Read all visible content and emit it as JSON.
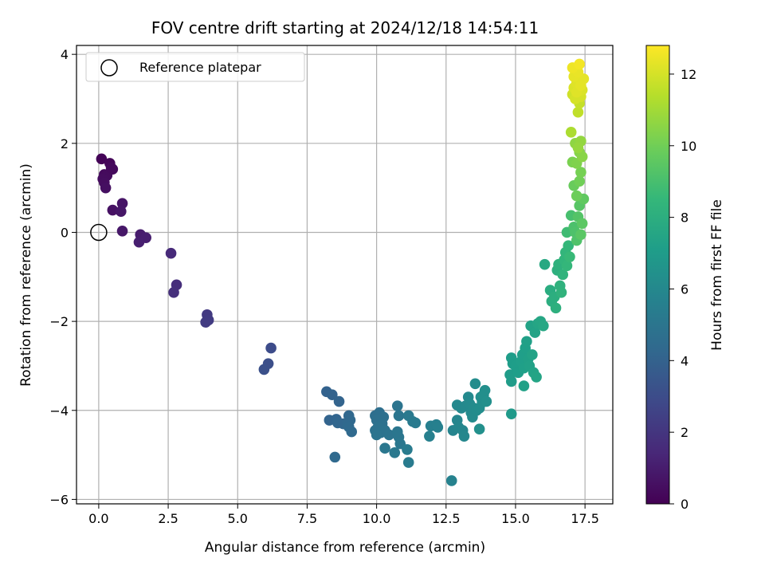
{
  "chart_data": {
    "type": "scatter",
    "title": "FOV centre drift starting at 2024/12/18 14:54:11",
    "xlabel": "Angular distance from reference (arcmin)",
    "ylabel": "Rotation from reference (arcmin)",
    "xlim": [
      -0.8,
      18.5
    ],
    "ylim": [
      -6.1,
      4.2
    ],
    "xticks": [
      0,
      2.5,
      5,
      7.5,
      10,
      12.5,
      15,
      17.5
    ],
    "xtick_labels": [
      "0.0",
      "2.5",
      "5.0",
      "7.5",
      "10.0",
      "12.5",
      "15.0",
      "17.5"
    ],
    "yticks": [
      4,
      2,
      0,
      -2,
      -4,
      -6
    ],
    "ytick_labels": [
      "4",
      "2",
      "0",
      "−2",
      "−4",
      "−6"
    ],
    "grid": true,
    "legend": {
      "placement": "top-left",
      "entries": [
        "Reference platepar"
      ]
    },
    "reference_point": {
      "x": 0,
      "y": 0
    },
    "colorbar": {
      "label": "Hours from first FF file",
      "colormap": "viridis",
      "range": [
        0,
        12.8
      ],
      "ticks": [
        0,
        2,
        4,
        6,
        8,
        10,
        12
      ],
      "tick_labels": [
        "0",
        "2",
        "4",
        "6",
        "8",
        "10",
        "12"
      ]
    },
    "colormap_stops": [
      "#440154",
      "#482878",
      "#3e4989",
      "#31688e",
      "#26828e",
      "#1f9e89",
      "#35b779",
      "#6ece58",
      "#b5de2b",
      "#fde725"
    ],
    "points": [
      {
        "x": 0.1,
        "y": 1.65,
        "h": 0.1
      },
      {
        "x": 0.4,
        "y": 1.55,
        "h": 0.2
      },
      {
        "x": 0.5,
        "y": 1.42,
        "h": 0.3
      },
      {
        "x": 0.2,
        "y": 1.3,
        "h": 0.3
      },
      {
        "x": 0.3,
        "y": 1.28,
        "h": 0.35
      },
      {
        "x": 0.15,
        "y": 1.2,
        "h": 0.4
      },
      {
        "x": 0.2,
        "y": 1.12,
        "h": 0.45
      },
      {
        "x": 0.25,
        "y": 1.0,
        "h": 0.5
      },
      {
        "x": 0.45,
        "y": 1.45,
        "h": 0.3
      },
      {
        "x": 0.5,
        "y": 0.5,
        "h": 0.6
      },
      {
        "x": 0.85,
        "y": 0.65,
        "h": 0.7
      },
      {
        "x": 0.8,
        "y": 0.47,
        "h": 0.75
      },
      {
        "x": 0.85,
        "y": 0.03,
        "h": 0.8
      },
      {
        "x": 1.5,
        "y": -0.05,
        "h": 1.0
      },
      {
        "x": 1.7,
        "y": -0.12,
        "h": 1.05
      },
      {
        "x": 1.45,
        "y": -0.22,
        "h": 1.1
      },
      {
        "x": 2.6,
        "y": -0.47,
        "h": 1.5
      },
      {
        "x": 2.8,
        "y": -1.18,
        "h": 1.7
      },
      {
        "x": 2.7,
        "y": -1.35,
        "h": 1.75
      },
      {
        "x": 3.9,
        "y": -1.85,
        "h": 2.2
      },
      {
        "x": 3.95,
        "y": -1.97,
        "h": 2.25
      },
      {
        "x": 3.85,
        "y": -2.02,
        "h": 2.3
      },
      {
        "x": 6.2,
        "y": -2.6,
        "h": 3.0
      },
      {
        "x": 6.1,
        "y": -2.95,
        "h": 3.1
      },
      {
        "x": 5.95,
        "y": -3.08,
        "h": 3.15
      },
      {
        "x": 8.2,
        "y": -3.58,
        "h": 4.0
      },
      {
        "x": 8.4,
        "y": -3.65,
        "h": 4.05
      },
      {
        "x": 8.65,
        "y": -3.8,
        "h": 4.1
      },
      {
        "x": 8.3,
        "y": -4.22,
        "h": 4.1
      },
      {
        "x": 8.55,
        "y": -4.2,
        "h": 4.15
      },
      {
        "x": 8.6,
        "y": -4.28,
        "h": 4.2
      },
      {
        "x": 8.8,
        "y": -4.3,
        "h": 4.2
      },
      {
        "x": 9.0,
        "y": -4.12,
        "h": 4.25
      },
      {
        "x": 9.05,
        "y": -4.22,
        "h": 4.3
      },
      {
        "x": 8.95,
        "y": -4.3,
        "h": 4.3
      },
      {
        "x": 9.0,
        "y": -4.37,
        "h": 4.35
      },
      {
        "x": 9.1,
        "y": -4.48,
        "h": 4.4
      },
      {
        "x": 8.5,
        "y": -5.05,
        "h": 4.4
      },
      {
        "x": 9.95,
        "y": -4.12,
        "h": 4.6
      },
      {
        "x": 10.1,
        "y": -4.05,
        "h": 4.65
      },
      {
        "x": 10.25,
        "y": -4.15,
        "h": 4.7
      },
      {
        "x": 10.0,
        "y": -4.22,
        "h": 4.7
      },
      {
        "x": 10.2,
        "y": -4.3,
        "h": 4.75
      },
      {
        "x": 10.05,
        "y": -4.38,
        "h": 4.8
      },
      {
        "x": 9.95,
        "y": -4.45,
        "h": 4.8
      },
      {
        "x": 10.15,
        "y": -4.5,
        "h": 4.85
      },
      {
        "x": 10.3,
        "y": -4.45,
        "h": 4.85
      },
      {
        "x": 10.45,
        "y": -4.55,
        "h": 4.9
      },
      {
        "x": 10.0,
        "y": -4.55,
        "h": 4.9
      },
      {
        "x": 10.75,
        "y": -3.9,
        "h": 4.95
      },
      {
        "x": 10.8,
        "y": -4.12,
        "h": 5.0
      },
      {
        "x": 10.75,
        "y": -4.48,
        "h": 5.05
      },
      {
        "x": 10.8,
        "y": -4.6,
        "h": 5.05
      },
      {
        "x": 10.85,
        "y": -4.75,
        "h": 5.1
      },
      {
        "x": 10.3,
        "y": -4.85,
        "h": 5.1
      },
      {
        "x": 10.65,
        "y": -4.95,
        "h": 5.15
      },
      {
        "x": 11.15,
        "y": -4.12,
        "h": 5.2
      },
      {
        "x": 11.3,
        "y": -4.25,
        "h": 5.25
      },
      {
        "x": 11.4,
        "y": -4.28,
        "h": 5.25
      },
      {
        "x": 11.1,
        "y": -4.88,
        "h": 5.3
      },
      {
        "x": 11.15,
        "y": -5.17,
        "h": 5.3
      },
      {
        "x": 11.95,
        "y": -4.35,
        "h": 5.5
      },
      {
        "x": 12.15,
        "y": -4.32,
        "h": 5.55
      },
      {
        "x": 12.2,
        "y": -4.38,
        "h": 5.6
      },
      {
        "x": 11.9,
        "y": -4.58,
        "h": 5.6
      },
      {
        "x": 12.7,
        "y": -5.58,
        "h": 5.7
      },
      {
        "x": 12.75,
        "y": -4.45,
        "h": 5.8
      },
      {
        "x": 12.9,
        "y": -4.22,
        "h": 5.85
      },
      {
        "x": 12.95,
        "y": -4.38,
        "h": 5.9
      },
      {
        "x": 13.1,
        "y": -4.45,
        "h": 5.9
      },
      {
        "x": 13.15,
        "y": -4.58,
        "h": 5.95
      },
      {
        "x": 12.9,
        "y": -3.88,
        "h": 6.0
      },
      {
        "x": 13.05,
        "y": -3.95,
        "h": 6.0
      },
      {
        "x": 13.2,
        "y": -3.9,
        "h": 6.05
      },
      {
        "x": 13.3,
        "y": -3.7,
        "h": 6.05
      },
      {
        "x": 13.35,
        "y": -3.85,
        "h": 6.1
      },
      {
        "x": 13.4,
        "y": -4.05,
        "h": 6.1
      },
      {
        "x": 13.45,
        "y": -4.15,
        "h": 6.15
      },
      {
        "x": 13.5,
        "y": -3.95,
        "h": 6.15
      },
      {
        "x": 13.55,
        "y": -3.4,
        "h": 6.2
      },
      {
        "x": 13.6,
        "y": -4.0,
        "h": 6.2
      },
      {
        "x": 13.7,
        "y": -3.95,
        "h": 6.25
      },
      {
        "x": 13.75,
        "y": -3.7,
        "h": 6.3
      },
      {
        "x": 13.8,
        "y": -3.82,
        "h": 6.3
      },
      {
        "x": 13.85,
        "y": -3.65,
        "h": 6.35
      },
      {
        "x": 13.9,
        "y": -3.55,
        "h": 6.35
      },
      {
        "x": 13.7,
        "y": -4.42,
        "h": 6.4
      },
      {
        "x": 13.95,
        "y": -3.8,
        "h": 6.4
      },
      {
        "x": 14.85,
        "y": -4.08,
        "h": 6.9
      },
      {
        "x": 14.8,
        "y": -3.2,
        "h": 7.0
      },
      {
        "x": 14.85,
        "y": -3.35,
        "h": 7.0
      },
      {
        "x": 14.9,
        "y": -2.95,
        "h": 7.05
      },
      {
        "x": 14.85,
        "y": -2.82,
        "h": 7.05
      },
      {
        "x": 15.0,
        "y": -3.0,
        "h": 7.1
      },
      {
        "x": 15.1,
        "y": -3.15,
        "h": 7.1
      },
      {
        "x": 15.2,
        "y": -2.9,
        "h": 7.15
      },
      {
        "x": 15.25,
        "y": -2.75,
        "h": 7.15
      },
      {
        "x": 15.3,
        "y": -3.05,
        "h": 7.2
      },
      {
        "x": 15.35,
        "y": -2.6,
        "h": 7.2
      },
      {
        "x": 15.4,
        "y": -2.45,
        "h": 7.25
      },
      {
        "x": 15.45,
        "y": -2.85,
        "h": 7.25
      },
      {
        "x": 15.3,
        "y": -3.45,
        "h": 7.3
      },
      {
        "x": 15.5,
        "y": -3.0,
        "h": 7.3
      },
      {
        "x": 15.55,
        "y": -2.1,
        "h": 7.35
      },
      {
        "x": 15.6,
        "y": -2.75,
        "h": 7.35
      },
      {
        "x": 15.65,
        "y": -3.15,
        "h": 7.4
      },
      {
        "x": 15.7,
        "y": -2.25,
        "h": 7.4
      },
      {
        "x": 15.75,
        "y": -3.25,
        "h": 7.45
      },
      {
        "x": 15.8,
        "y": -2.05,
        "h": 7.5
      },
      {
        "x": 15.9,
        "y": -2.0,
        "h": 7.55
      },
      {
        "x": 16.0,
        "y": -2.1,
        "h": 7.6
      },
      {
        "x": 16.05,
        "y": -0.72,
        "h": 7.7
      },
      {
        "x": 16.25,
        "y": -1.3,
        "h": 7.9
      },
      {
        "x": 16.3,
        "y": -1.55,
        "h": 7.95
      },
      {
        "x": 16.4,
        "y": -1.45,
        "h": 8.0
      },
      {
        "x": 16.45,
        "y": -1.7,
        "h": 8.05
      },
      {
        "x": 16.5,
        "y": -0.85,
        "h": 8.1
      },
      {
        "x": 16.55,
        "y": -0.72,
        "h": 8.15
      },
      {
        "x": 16.6,
        "y": -1.2,
        "h": 8.2
      },
      {
        "x": 16.65,
        "y": -1.35,
        "h": 8.25
      },
      {
        "x": 16.7,
        "y": -0.95,
        "h": 8.3
      },
      {
        "x": 16.75,
        "y": -0.62,
        "h": 8.35
      },
      {
        "x": 16.8,
        "y": -0.45,
        "h": 8.4
      },
      {
        "x": 16.85,
        "y": -0.75,
        "h": 8.45
      },
      {
        "x": 16.9,
        "y": -0.3,
        "h": 8.5
      },
      {
        "x": 16.95,
        "y": -0.55,
        "h": 8.6
      },
      {
        "x": 16.85,
        "y": 0.0,
        "h": 8.8
      },
      {
        "x": 17.0,
        "y": 0.38,
        "h": 9.0
      },
      {
        "x": 17.1,
        "y": 0.12,
        "h": 9.1
      },
      {
        "x": 17.15,
        "y": 0.0,
        "h": 9.15
      },
      {
        "x": 17.2,
        "y": -0.18,
        "h": 9.2
      },
      {
        "x": 17.25,
        "y": 0.35,
        "h": 9.3
      },
      {
        "x": 17.3,
        "y": 0.6,
        "h": 9.4
      },
      {
        "x": 17.35,
        "y": -0.05,
        "h": 9.45
      },
      {
        "x": 17.4,
        "y": 0.2,
        "h": 9.5
      },
      {
        "x": 17.45,
        "y": 0.75,
        "h": 9.6
      },
      {
        "x": 17.1,
        "y": 1.05,
        "h": 9.8
      },
      {
        "x": 17.2,
        "y": 0.82,
        "h": 9.9
      },
      {
        "x": 17.3,
        "y": 1.15,
        "h": 10.0
      },
      {
        "x": 17.35,
        "y": 1.35,
        "h": 10.1
      },
      {
        "x": 17.05,
        "y": 1.58,
        "h": 10.2
      },
      {
        "x": 17.2,
        "y": 1.55,
        "h": 10.3
      },
      {
        "x": 17.3,
        "y": 1.8,
        "h": 10.4
      },
      {
        "x": 17.4,
        "y": 1.7,
        "h": 10.5
      },
      {
        "x": 17.15,
        "y": 2.0,
        "h": 10.6
      },
      {
        "x": 17.35,
        "y": 2.05,
        "h": 10.7
      },
      {
        "x": 17.25,
        "y": 1.9,
        "h": 10.75
      },
      {
        "x": 17.0,
        "y": 2.25,
        "h": 11.2
      },
      {
        "x": 17.25,
        "y": 2.7,
        "h": 11.6
      },
      {
        "x": 17.3,
        "y": 2.9,
        "h": 11.7
      },
      {
        "x": 17.05,
        "y": 3.1,
        "h": 11.9
      },
      {
        "x": 17.15,
        "y": 3.0,
        "h": 12.0
      },
      {
        "x": 17.35,
        "y": 3.05,
        "h": 12.0
      },
      {
        "x": 17.4,
        "y": 3.2,
        "h": 12.1
      },
      {
        "x": 17.1,
        "y": 3.25,
        "h": 12.1
      },
      {
        "x": 17.2,
        "y": 3.35,
        "h": 12.2
      },
      {
        "x": 17.3,
        "y": 3.45,
        "h": 12.25
      },
      {
        "x": 17.45,
        "y": 3.45,
        "h": 12.3
      },
      {
        "x": 17.1,
        "y": 3.5,
        "h": 12.35
      },
      {
        "x": 17.25,
        "y": 3.6,
        "h": 12.4
      },
      {
        "x": 17.05,
        "y": 3.7,
        "h": 12.5
      },
      {
        "x": 17.3,
        "y": 3.78,
        "h": 12.6
      },
      {
        "x": 17.2,
        "y": 3.15,
        "h": 12.2
      },
      {
        "x": 17.35,
        "y": 3.3,
        "h": 12.3
      }
    ]
  }
}
